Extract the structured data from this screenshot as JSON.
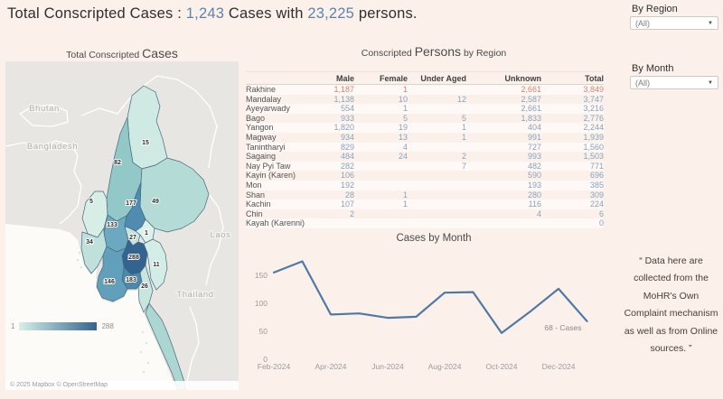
{
  "header": {
    "title_prefix": "Total Conscripted Cases : ",
    "cases_count": "1,243",
    "title_mid": " Cases with ",
    "persons_count": "23,225",
    "title_suffix": " persons."
  },
  "filters": {
    "region": {
      "label": "By Region",
      "value": "(All)"
    },
    "month": {
      "label": "By Month",
      "value": "(All)"
    }
  },
  "note": "“ Data here are collected from the MoHR's Own Complaint mechanism as well as from Online sources. ”",
  "map": {
    "title_prefix": "Total Conscripted ",
    "title_emphasis": "Cases",
    "legend": {
      "min": "1",
      "max": "288"
    },
    "attribution": "© 2025 Mapbox © OpenStreetMap",
    "country_labels": [
      "Bhutan",
      "Bangladesh",
      "Laos",
      "Thailand"
    ],
    "labels": [
      {
        "region": "Kachin",
        "value": "15"
      },
      {
        "region": "Sagaing",
        "value": "82"
      },
      {
        "region": "Chin",
        "value": "5"
      },
      {
        "region": "Shan",
        "value": "49"
      },
      {
        "region": "Mandalay",
        "value": "177"
      },
      {
        "region": "Magway",
        "value": "133"
      },
      {
        "region": "Nay Pyi Taw",
        "value": "27"
      },
      {
        "region": "Kayah",
        "value": "1"
      },
      {
        "region": "Rakhine",
        "value": "34"
      },
      {
        "region": "Bago",
        "value": "288"
      },
      {
        "region": "Kayin",
        "value": "11"
      },
      {
        "region": "Yangon",
        "value": "183"
      },
      {
        "region": "Ayeyarwady",
        "value": "146"
      },
      {
        "region": "Mon",
        "value": "26"
      }
    ]
  },
  "table": {
    "title_prefix": "Conscripted ",
    "title_emphasis": "Persons",
    "title_suffix": " by Region",
    "columns": [
      "Male",
      "Female",
      "Under Aged",
      "Unknown",
      "Total"
    ],
    "rows": [
      {
        "region": "Rakhine",
        "male": "1,187",
        "female": "1",
        "under_aged": "",
        "unknown": "2,661",
        "total": "3,849",
        "highlight": true
      },
      {
        "region": "Mandalay",
        "male": "1,138",
        "female": "10",
        "under_aged": "12",
        "unknown": "2,587",
        "total": "3,747"
      },
      {
        "region": "Ayeyarwady",
        "male": "554",
        "female": "1",
        "under_aged": "",
        "unknown": "2,661",
        "total": "3,216"
      },
      {
        "region": "Bago",
        "male": "933",
        "female": "5",
        "under_aged": "5",
        "unknown": "1,833",
        "total": "2,776"
      },
      {
        "region": "Yangon",
        "male": "1,820",
        "female": "19",
        "under_aged": "1",
        "unknown": "404",
        "total": "2,244"
      },
      {
        "region": "Magway",
        "male": "934",
        "female": "13",
        "under_aged": "1",
        "unknown": "991",
        "total": "1,939"
      },
      {
        "region": "Tanintharyi",
        "male": "829",
        "female": "4",
        "under_aged": "",
        "unknown": "727",
        "total": "1,560"
      },
      {
        "region": "Sagaing",
        "male": "484",
        "female": "24",
        "under_aged": "2",
        "unknown": "993",
        "total": "1,503"
      },
      {
        "region": "Nay Pyi Taw",
        "male": "282",
        "female": "",
        "under_aged": "7",
        "unknown": "482",
        "total": "771"
      },
      {
        "region": "Kayin (Karen)",
        "male": "106",
        "female": "",
        "under_aged": "",
        "unknown": "590",
        "total": "696"
      },
      {
        "region": "Mon",
        "male": "192",
        "female": "",
        "under_aged": "",
        "unknown": "193",
        "total": "385"
      },
      {
        "region": "Shan",
        "male": "28",
        "female": "1",
        "under_aged": "",
        "unknown": "280",
        "total": "309"
      },
      {
        "region": "Kachin",
        "male": "107",
        "female": "1",
        "under_aged": "",
        "unknown": "116",
        "total": "224"
      },
      {
        "region": "Chin",
        "male": "2",
        "female": "",
        "under_aged": "",
        "unknown": "4",
        "total": "6"
      },
      {
        "region": "Kayah (Karenni)",
        "male": "",
        "female": "",
        "under_aged": "",
        "unknown": "",
        "total": "0"
      }
    ]
  },
  "chart_data": [
    {
      "type": "line",
      "title": "Cases by Month",
      "x": [
        "Feb-2024",
        "Mar-2024",
        "Apr-2024",
        "May-2024",
        "Jun-2024",
        "Jul-2024",
        "Aug-2024",
        "Sep-2024",
        "Oct-2024",
        "Nov-2024",
        "Dec-2024",
        "Jan-2025"
      ],
      "values": [
        155,
        175,
        80,
        82,
        74,
        76,
        119,
        120,
        47,
        85,
        126,
        68
      ],
      "x_ticks": [
        "Feb-2024",
        "Apr-2024",
        "Jun-2024",
        "Aug-2024",
        "Oct-2024",
        "Dec-2024"
      ],
      "y_ticks": [
        0,
        50,
        100,
        150
      ],
      "ylim": [
        0,
        190
      ],
      "end_label": "68 - Cases",
      "line_color": "#4e79a7",
      "grid": false,
      "legend_position": "none"
    },
    {
      "type": "heatmap",
      "subtype": "choropleth-map",
      "title": "Total Conscripted Cases",
      "legend_range": [
        1,
        288
      ],
      "regions": [
        {
          "name": "Kachin",
          "cases": 15
        },
        {
          "name": "Sagaing",
          "cases": 82
        },
        {
          "name": "Chin",
          "cases": 5
        },
        {
          "name": "Shan",
          "cases": 49
        },
        {
          "name": "Mandalay",
          "cases": 177
        },
        {
          "name": "Magway",
          "cases": 133
        },
        {
          "name": "Nay Pyi Taw",
          "cases": 27
        },
        {
          "name": "Kayah",
          "cases": 1
        },
        {
          "name": "Rakhine",
          "cases": 34
        },
        {
          "name": "Bago",
          "cases": 288
        },
        {
          "name": "Kayin",
          "cases": 11
        },
        {
          "name": "Yangon",
          "cases": 183
        },
        {
          "name": "Ayeyarwady",
          "cases": 146
        },
        {
          "name": "Mon",
          "cases": 26
        }
      ]
    }
  ]
}
